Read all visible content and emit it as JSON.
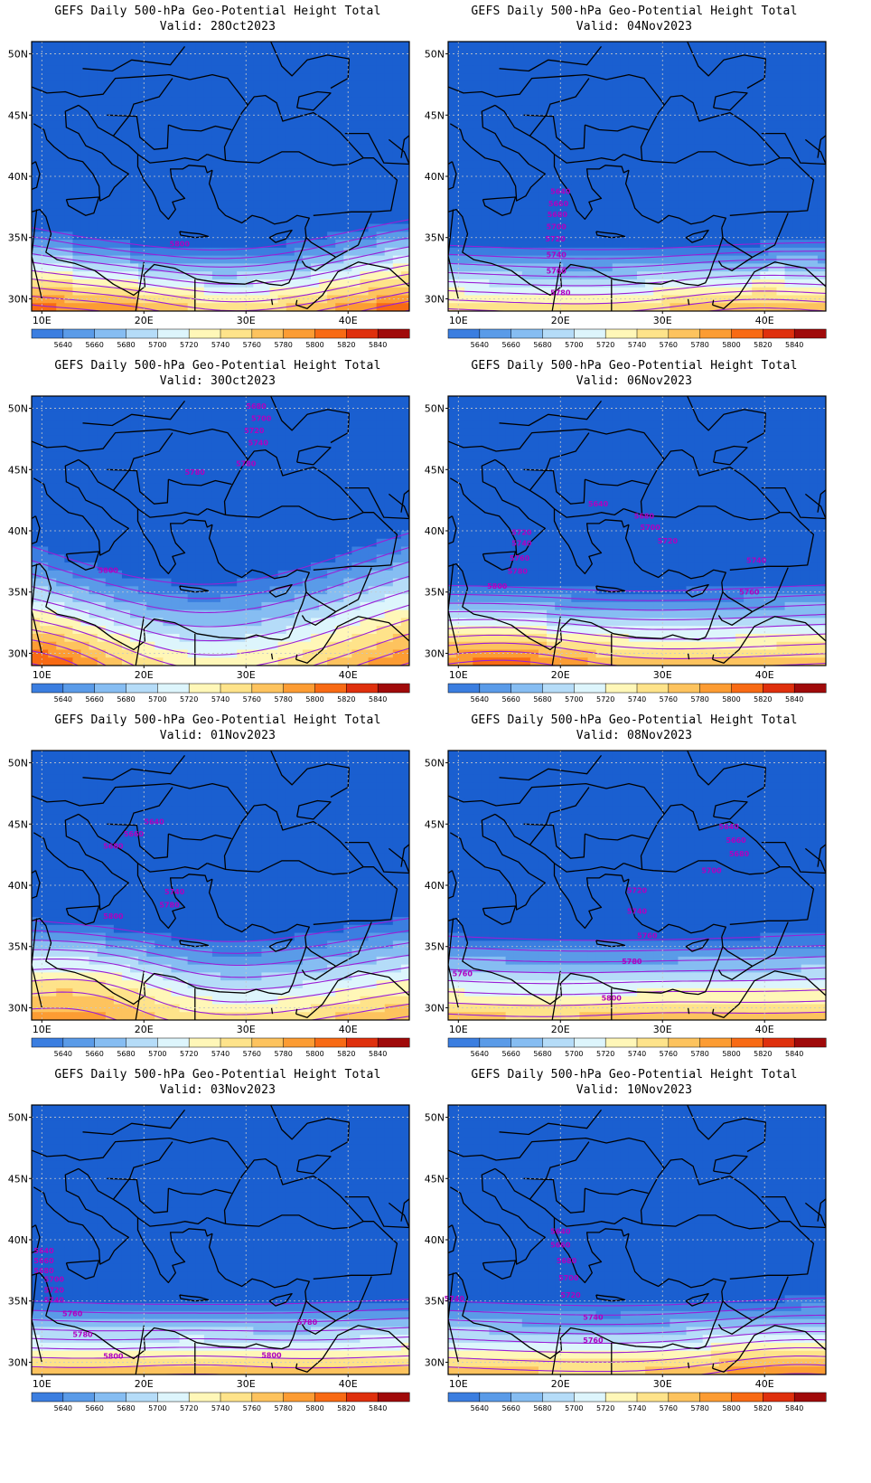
{
  "colors": {
    "levels": [
      "#1a5fd0",
      "#3b7ee0",
      "#5a9be8",
      "#86bdf2",
      "#b5dcf8",
      "#ddf5fc",
      "#fff7b8",
      "#fee38a",
      "#fdc35e",
      "#fc9c33",
      "#f86a14",
      "#df300d",
      "#a00a0a"
    ],
    "contour": "#9a1fd6",
    "coast": "#000000"
  },
  "colorbar": {
    "labels": [
      "5640",
      "5660",
      "5680",
      "5700",
      "5720",
      "5740",
      "5760",
      "5780",
      "5800",
      "5820",
      "5840"
    ]
  },
  "axes": {
    "lat_labels": [
      "50N",
      "45N",
      "40N",
      "35N",
      "30N"
    ],
    "lon_labels": [
      "10E",
      "20E",
      "30E",
      "40E"
    ]
  },
  "panels": [
    {
      "title": "GEFS Daily 500-hPa Geo-Potential Height Total",
      "valid": "Valid: 28Oct2023",
      "field": {
        "base": 5818,
        "slope": -27,
        "wave": 1.0,
        "hi_lon": 18,
        "hi_lat": 29,
        "hi_amp": 30
      },
      "contour_labels": [
        {
          "text": "5800",
          "lon": 23.5,
          "lat": 34.5
        }
      ]
    },
    {
      "title": "GEFS Daily 500-hPa Geo-Potential Height Total",
      "valid": "Valid: 04Nov2023",
      "field": {
        "base": 5784,
        "slope": -27,
        "wave": 0.2,
        "hi_lon": 38,
        "hi_lat": 29,
        "hi_amp": 25
      },
      "contour_labels": [
        {
          "text": "5640",
          "lon": 20.0,
          "lat": 38.8
        },
        {
          "text": "5660",
          "lon": 19.8,
          "lat": 37.8
        },
        {
          "text": "5680",
          "lon": 19.7,
          "lat": 36.9
        },
        {
          "text": "5700",
          "lon": 19.6,
          "lat": 35.9
        },
        {
          "text": "5720",
          "lon": 19.5,
          "lat": 34.9
        },
        {
          "text": "5740",
          "lon": 19.6,
          "lat": 33.6
        },
        {
          "text": "5760",
          "lon": 19.6,
          "lat": 32.3
        },
        {
          "text": "5780",
          "lon": 20.0,
          "lat": 30.5
        }
      ]
    },
    {
      "title": "GEFS Daily 500-hPa Geo-Potential Height Total",
      "valid": "Valid: 30Oct2023",
      "field": {
        "base": 5800,
        "slope": -17,
        "wave": 1.6,
        "hi_lon": 11,
        "hi_lat": 29,
        "hi_amp": 40
      },
      "contour_labels": [
        {
          "text": "5680",
          "lon": 31.0,
          "lat": 50.2
        },
        {
          "text": "5700",
          "lon": 31.5,
          "lat": 49.2
        },
        {
          "text": "5720",
          "lon": 30.8,
          "lat": 48.2
        },
        {
          "text": "5740",
          "lon": 31.2,
          "lat": 47.2
        },
        {
          "text": "5780",
          "lon": 30.0,
          "lat": 45.5
        },
        {
          "text": "5780",
          "lon": 25.0,
          "lat": 44.8
        },
        {
          "text": "5800",
          "lon": 16.5,
          "lat": 36.8
        }
      ]
    },
    {
      "title": "GEFS Daily 500-hPa Geo-Potential Height Total",
      "valid": "Valid: 06Nov2023",
      "field": {
        "base": 5800,
        "slope": -25,
        "wave": 0.2,
        "hi_lon": 15,
        "hi_lat": 29,
        "hi_amp": 35
      },
      "contour_labels": [
        {
          "text": "5640",
          "lon": 23.7,
          "lat": 42.2
        },
        {
          "text": "5680",
          "lon": 28.2,
          "lat": 41.2
        },
        {
          "text": "5700",
          "lon": 28.8,
          "lat": 40.3
        },
        {
          "text": "5720",
          "lon": 30.5,
          "lat": 39.2
        },
        {
          "text": "5740",
          "lon": 39.2,
          "lat": 37.6
        },
        {
          "text": "5760",
          "lon": 38.5,
          "lat": 35.0
        },
        {
          "text": "5720",
          "lon": 16.2,
          "lat": 39.9
        },
        {
          "text": "5740",
          "lon": 16.2,
          "lat": 39.0
        },
        {
          "text": "5760",
          "lon": 16.0,
          "lat": 37.8
        },
        {
          "text": "5780",
          "lon": 15.8,
          "lat": 36.7
        },
        {
          "text": "5800",
          "lon": 13.8,
          "lat": 35.5
        }
      ]
    },
    {
      "title": "GEFS Daily 500-hPa Geo-Potential Height Total",
      "valid": "Valid: 01Nov2023",
      "field": {
        "base": 5792,
        "slope": -20,
        "wave": 0.8,
        "hi_lon": 15,
        "hi_lat": 32,
        "hi_amp": 45
      },
      "contour_labels": [
        {
          "text": "5640",
          "lon": 21.0,
          "lat": 45.2
        },
        {
          "text": "5660",
          "lon": 19.0,
          "lat": 44.2
        },
        {
          "text": "5680",
          "lon": 17.0,
          "lat": 43.2
        },
        {
          "text": "5740",
          "lon": 23.0,
          "lat": 39.5
        },
        {
          "text": "5780",
          "lon": 22.5,
          "lat": 38.4
        },
        {
          "text": "5800",
          "lon": 17.0,
          "lat": 37.5
        }
      ]
    },
    {
      "title": "GEFS Daily 500-hPa Geo-Potential Height Total",
      "valid": "Valid: 08Nov2023",
      "field": {
        "base": 5790,
        "slope": -22,
        "wave": 0.2,
        "hi_lon": 30,
        "hi_lat": 29,
        "hi_amp": 10
      },
      "contour_labels": [
        {
          "text": "5640",
          "lon": 36.5,
          "lat": 44.8
        },
        {
          "text": "5660",
          "lon": 37.2,
          "lat": 43.7
        },
        {
          "text": "5680",
          "lon": 37.5,
          "lat": 42.6
        },
        {
          "text": "5700",
          "lon": 34.8,
          "lat": 41.2
        },
        {
          "text": "5720",
          "lon": 27.5,
          "lat": 39.6
        },
        {
          "text": "5740",
          "lon": 27.5,
          "lat": 37.9
        },
        {
          "text": "5760",
          "lon": 28.5,
          "lat": 35.9
        },
        {
          "text": "5780",
          "lon": 27.0,
          "lat": 33.8
        },
        {
          "text": "5760",
          "lon": 10.4,
          "lat": 32.8
        },
        {
          "text": "5800",
          "lon": 25.0,
          "lat": 30.8
        }
      ]
    },
    {
      "title": "GEFS Daily 500-hPa Geo-Potential Height Total",
      "valid": "Valid: 03Nov2023",
      "field": {
        "base": 5795,
        "slope": -26,
        "wave": 0.2,
        "hi_lon": 25,
        "hi_lat": 29,
        "hi_amp": 15
      },
      "contour_labels": [
        {
          "text": "5640",
          "lon": 10.2,
          "lat": 39.1
        },
        {
          "text": "5660",
          "lon": 10.2,
          "lat": 38.3
        },
        {
          "text": "5680",
          "lon": 10.2,
          "lat": 37.5
        },
        {
          "text": "5700",
          "lon": 11.2,
          "lat": 36.8
        },
        {
          "text": "5720",
          "lon": 11.2,
          "lat": 35.9
        },
        {
          "text": "5740",
          "lon": 11.2,
          "lat": 35.1
        },
        {
          "text": "5760",
          "lon": 13.0,
          "lat": 34.0
        },
        {
          "text": "5780",
          "lon": 14.0,
          "lat": 32.3
        },
        {
          "text": "5780",
          "lon": 36.0,
          "lat": 33.3
        },
        {
          "text": "5800",
          "lon": 17.0,
          "lat": 30.5
        },
        {
          "text": "5800",
          "lon": 32.5,
          "lat": 30.6
        }
      ]
    },
    {
      "title": "GEFS Daily 500-hPa Geo-Potential Height Total",
      "valid": "Valid: 10Nov2023",
      "field": {
        "base": 5795,
        "slope": -26,
        "wave": 0.2,
        "hi_lon": 42,
        "hi_lat": 29,
        "hi_amp": 25
      },
      "contour_labels": [
        {
          "text": "5640",
          "lon": 20.0,
          "lat": 40.7
        },
        {
          "text": "5660",
          "lon": 20.0,
          "lat": 39.6
        },
        {
          "text": "5680",
          "lon": 20.6,
          "lat": 38.3
        },
        {
          "text": "5700",
          "lon": 20.8,
          "lat": 36.9
        },
        {
          "text": "5720",
          "lon": 21.0,
          "lat": 35.5
        },
        {
          "text": "5740",
          "lon": 23.2,
          "lat": 33.7
        },
        {
          "text": "5760",
          "lon": 23.2,
          "lat": 31.8
        },
        {
          "text": "5740",
          "lon": 9.6,
          "lat": 35.2
        }
      ]
    }
  ]
}
